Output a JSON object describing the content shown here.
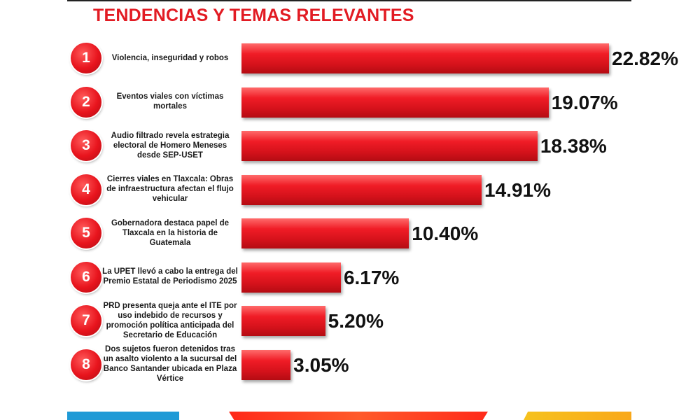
{
  "title": "TENDENCIAS Y TEMAS RELEVANTES",
  "chart_data": {
    "type": "bar",
    "orientation": "horizontal",
    "title": "TENDENCIAS Y TEMAS RELEVANTES",
    "xlim": [
      0,
      23.5
    ],
    "grid": false,
    "bar_color": "#e8141d",
    "categories": [
      "Violencia, inseguridad y robos",
      "Eventos viales con víctimas mortales",
      "Audio filtrado revela estrategia electoral de Homero Meneses desde SEP-USET",
      "Cierres viales en Tlaxcala: Obras de infraestructura afectan el flujo vehicular",
      "Gobernadora destaca papel de Tlaxcala en la historia de Guatemala",
      "La UPET llevó a cabo la entrega del Premio Estatal de Periodismo 2025",
      "PRD presenta queja ante el ITE por uso indebido de recursos y promoción política anticipada del Secretario de Educación",
      "Dos sujetos fueron detenidos tras un asalto violento a la sucursal del Banco Santander ubicada en Plaza Vértice"
    ],
    "ranks": [
      "1",
      "2",
      "3",
      "4",
      "5",
      "6",
      "7",
      "8"
    ],
    "values": [
      22.82,
      19.07,
      18.38,
      14.91,
      10.4,
      6.17,
      5.2,
      3.05
    ],
    "value_labels": [
      "22.82%",
      "19.07%",
      "18.38%",
      "14.91%",
      "10.40%",
      "6.17%",
      "5.20%",
      "3.05%"
    ]
  }
}
